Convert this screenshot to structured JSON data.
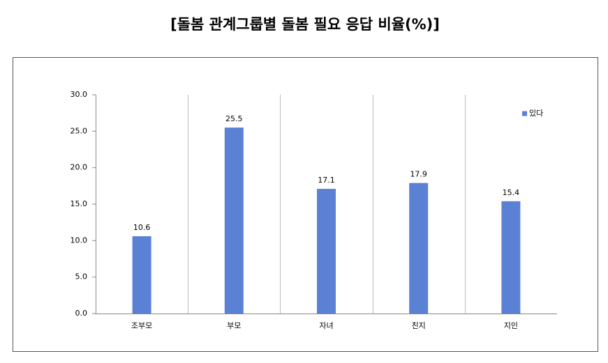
{
  "chart_data": {
    "type": "bar",
    "title": "[돌봄 관계그룹별 돌봄 필요 응답 비율(%)]",
    "categories": [
      "조부모",
      "부모",
      "자녀",
      "친지",
      "지인"
    ],
    "series": [
      {
        "name": "있다",
        "color": "#5b81d5",
        "values": [
          10.6,
          25.5,
          17.1,
          17.9,
          15.4
        ]
      }
    ],
    "ylim": [
      0,
      30
    ],
    "yticks": [
      {
        "value": 0,
        "label": "0.0"
      },
      {
        "value": 5,
        "label": "5.0"
      },
      {
        "value": 10,
        "label": "10.0"
      },
      {
        "value": 15,
        "label": "15.0"
      },
      {
        "value": 20,
        "label": "20.0"
      },
      {
        "value": 25,
        "label": "25.0"
      },
      {
        "value": 30,
        "label": "30.0"
      }
    ],
    "legend": "top-right"
  }
}
